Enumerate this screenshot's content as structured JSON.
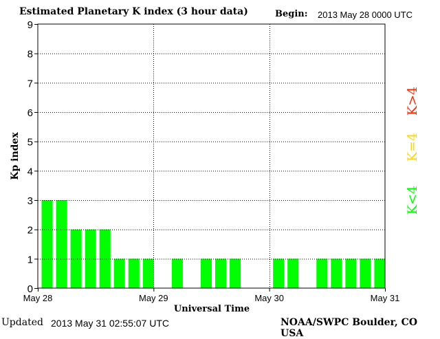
{
  "header": {
    "title": "Estimated Planetary K index (3 hour data)",
    "begin_label": "Begin:",
    "begin_value": "2013 May 28 0000 UTC"
  },
  "footer": {
    "updated_label": "Updated",
    "updated_value": "2013 May 31 02:55:07 UTC",
    "credit": "NOAA/SWPC Boulder, CO USA"
  },
  "legend": [
    {
      "label": "K>4",
      "color": "#ff2a00"
    },
    {
      "label": "K=4",
      "color": "#ffd700"
    },
    {
      "label": "K<4",
      "color": "#00ff00"
    }
  ],
  "chart_data": {
    "type": "bar",
    "title": "Estimated Planetary K index (3 hour data)",
    "xlabel": "Universal Time",
    "ylabel": "Kp index",
    "ylim": [
      0,
      9
    ],
    "yticks": [
      "0",
      "1",
      "2",
      "3",
      "4",
      "5",
      "6",
      "7",
      "8",
      "9"
    ],
    "xtick_labels": [
      "May 28",
      "May 29",
      "May 30",
      "May 31"
    ],
    "grid": true,
    "interval_hours": 3,
    "num_intervals": 24,
    "values": [
      3,
      3,
      2,
      2,
      2,
      1,
      1,
      1,
      0,
      1,
      0,
      1,
      1,
      1,
      0,
      0,
      1,
      1,
      0,
      1,
      1,
      1,
      1,
      1
    ],
    "bar_color": "#00ff00"
  }
}
